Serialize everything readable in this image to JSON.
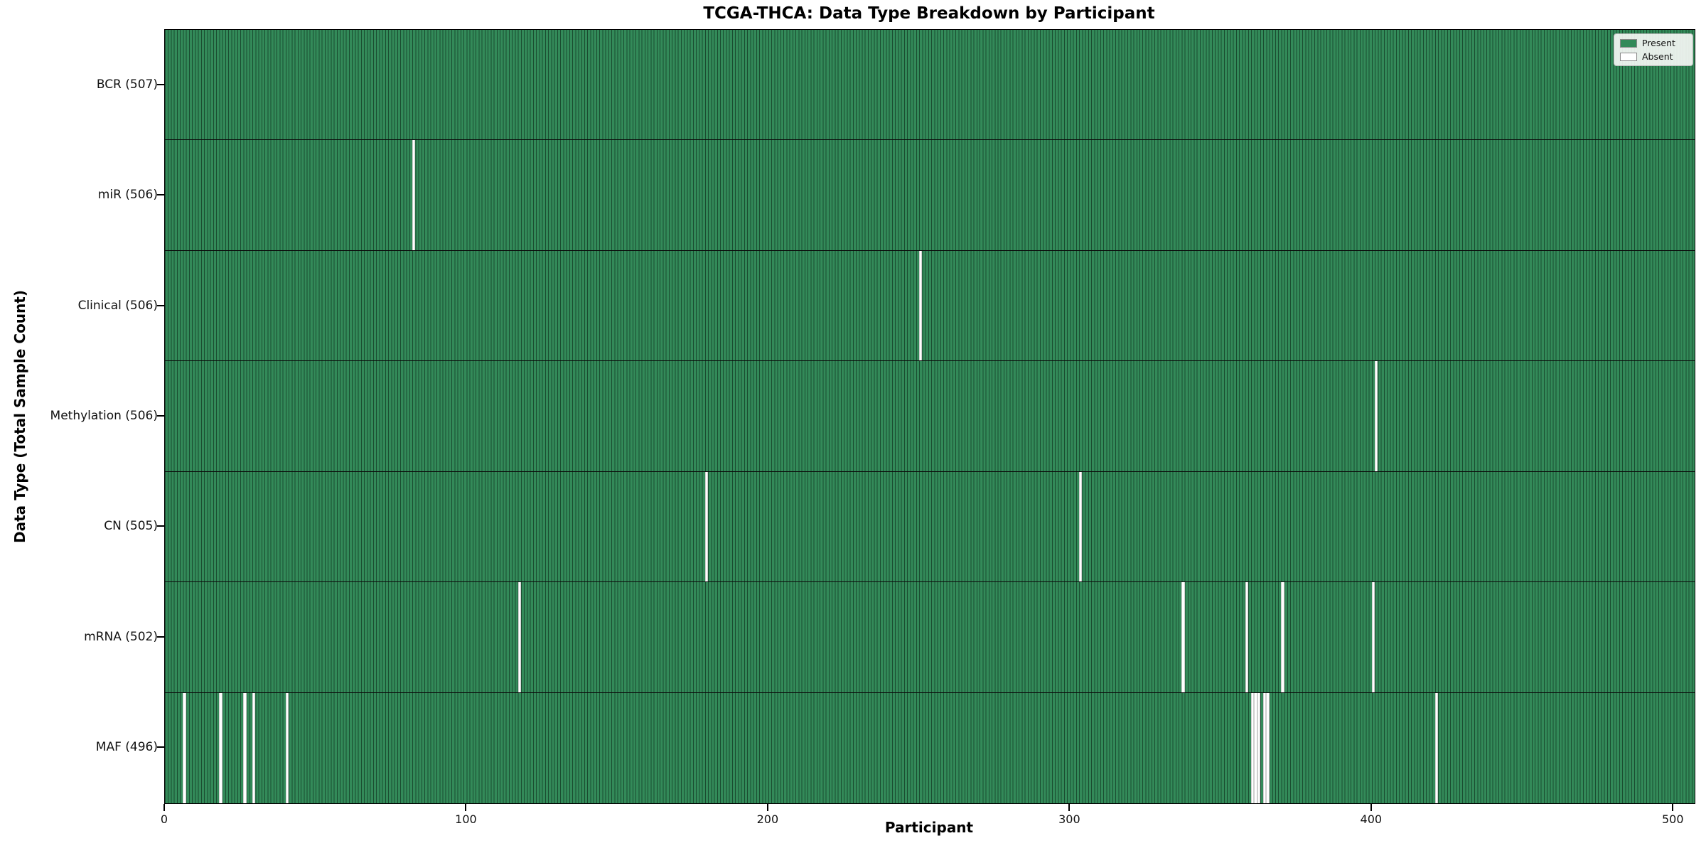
{
  "title": "TCGA-THCA: Data Type Breakdown by Participant",
  "chart_data": {
    "type": "heatmap",
    "title": "TCGA-THCA: Data Type Breakdown by Participant",
    "xlabel": "Participant",
    "ylabel": "Data Type (Total Sample Count)",
    "x_ticks": [
      0,
      100,
      200,
      300,
      400,
      500
    ],
    "xlim": [
      0,
      507
    ],
    "total_participants": 507,
    "grid": false,
    "legend_position": "upper right",
    "legend": {
      "entries": [
        {
          "label": "Present",
          "color": "#338a59"
        },
        {
          "label": "Absent",
          "color": "#ffffff"
        }
      ]
    },
    "colors": {
      "present_fill": "#338a59",
      "bar_edge": "rgba(5,25,15,0.55)",
      "absent_fill": "#ffffff",
      "row_separator": "#0a0a0a"
    },
    "rows": [
      {
        "data_type": "BCR",
        "count": 507,
        "label": "BCR (507)",
        "absent_participants": []
      },
      {
        "data_type": "miR",
        "count": 506,
        "label": "miR (506)",
        "absent_participants": [
          82
        ]
      },
      {
        "data_type": "Clinical",
        "count": 506,
        "label": "Clinical (506)",
        "absent_participants": [
          250
        ]
      },
      {
        "data_type": "Methylation",
        "count": 506,
        "label": "Methylation (506)",
        "absent_participants": [
          401
        ]
      },
      {
        "data_type": "CN",
        "count": 505,
        "label": "CN (505)",
        "absent_participants": [
          179,
          303
        ]
      },
      {
        "data_type": "mRNA",
        "count": 502,
        "label": "mRNA (502)",
        "absent_participants": [
          117,
          337,
          358,
          370,
          400
        ]
      },
      {
        "data_type": "MAF",
        "count": 496,
        "label": "MAF (496)",
        "absent_participants": [
          6,
          18,
          26,
          29,
          40,
          360,
          361,
          362,
          364,
          365,
          421
        ]
      }
    ]
  }
}
